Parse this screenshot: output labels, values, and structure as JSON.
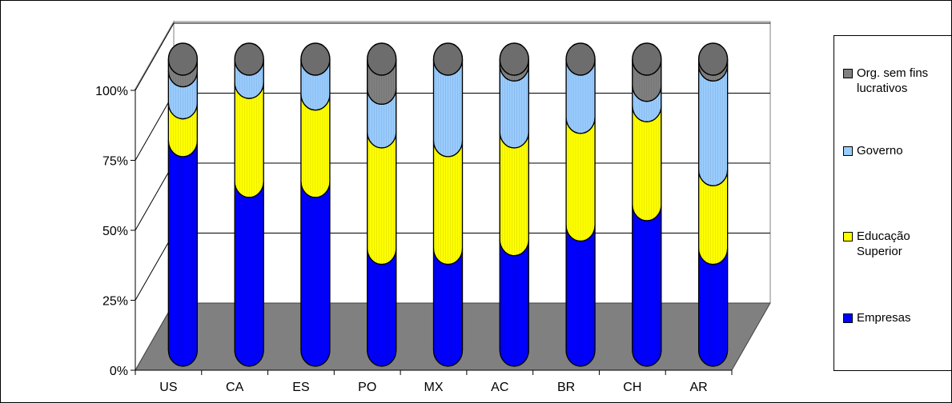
{
  "chart_data": {
    "type": "bar",
    "stacked": true,
    "percent_stacked": true,
    "style": "3d-cylinder",
    "categories": [
      "US",
      "CA",
      "ES",
      "PO",
      "MX",
      "AC",
      "BR",
      "CH",
      "AR"
    ],
    "series": [
      {
        "name": "Empresas",
        "color": "#0000ff",
        "values": [
          72,
          58,
          58,
          35,
          35,
          38,
          43,
          50,
          35
        ]
      },
      {
        "name": "Educação Superior",
        "color": "#ffff00",
        "values": [
          13,
          34,
          30,
          40,
          37,
          37,
          37,
          34,
          27
        ]
      },
      {
        "name": "Governo",
        "color": "#99ccff",
        "values": [
          11,
          8,
          12,
          15,
          28,
          23,
          20,
          7,
          36
        ]
      },
      {
        "name": "Org. sem fins lucrativos",
        "color": "#808080",
        "values": [
          4,
          0,
          0,
          10,
          0,
          2,
          0,
          9,
          2
        ]
      }
    ],
    "y_ticks": [
      "0%",
      "25%",
      "50%",
      "75%",
      "100%"
    ],
    "ylim": [
      0,
      100
    ],
    "grid": true,
    "legend_position": "right",
    "floor_color": "#808080"
  }
}
